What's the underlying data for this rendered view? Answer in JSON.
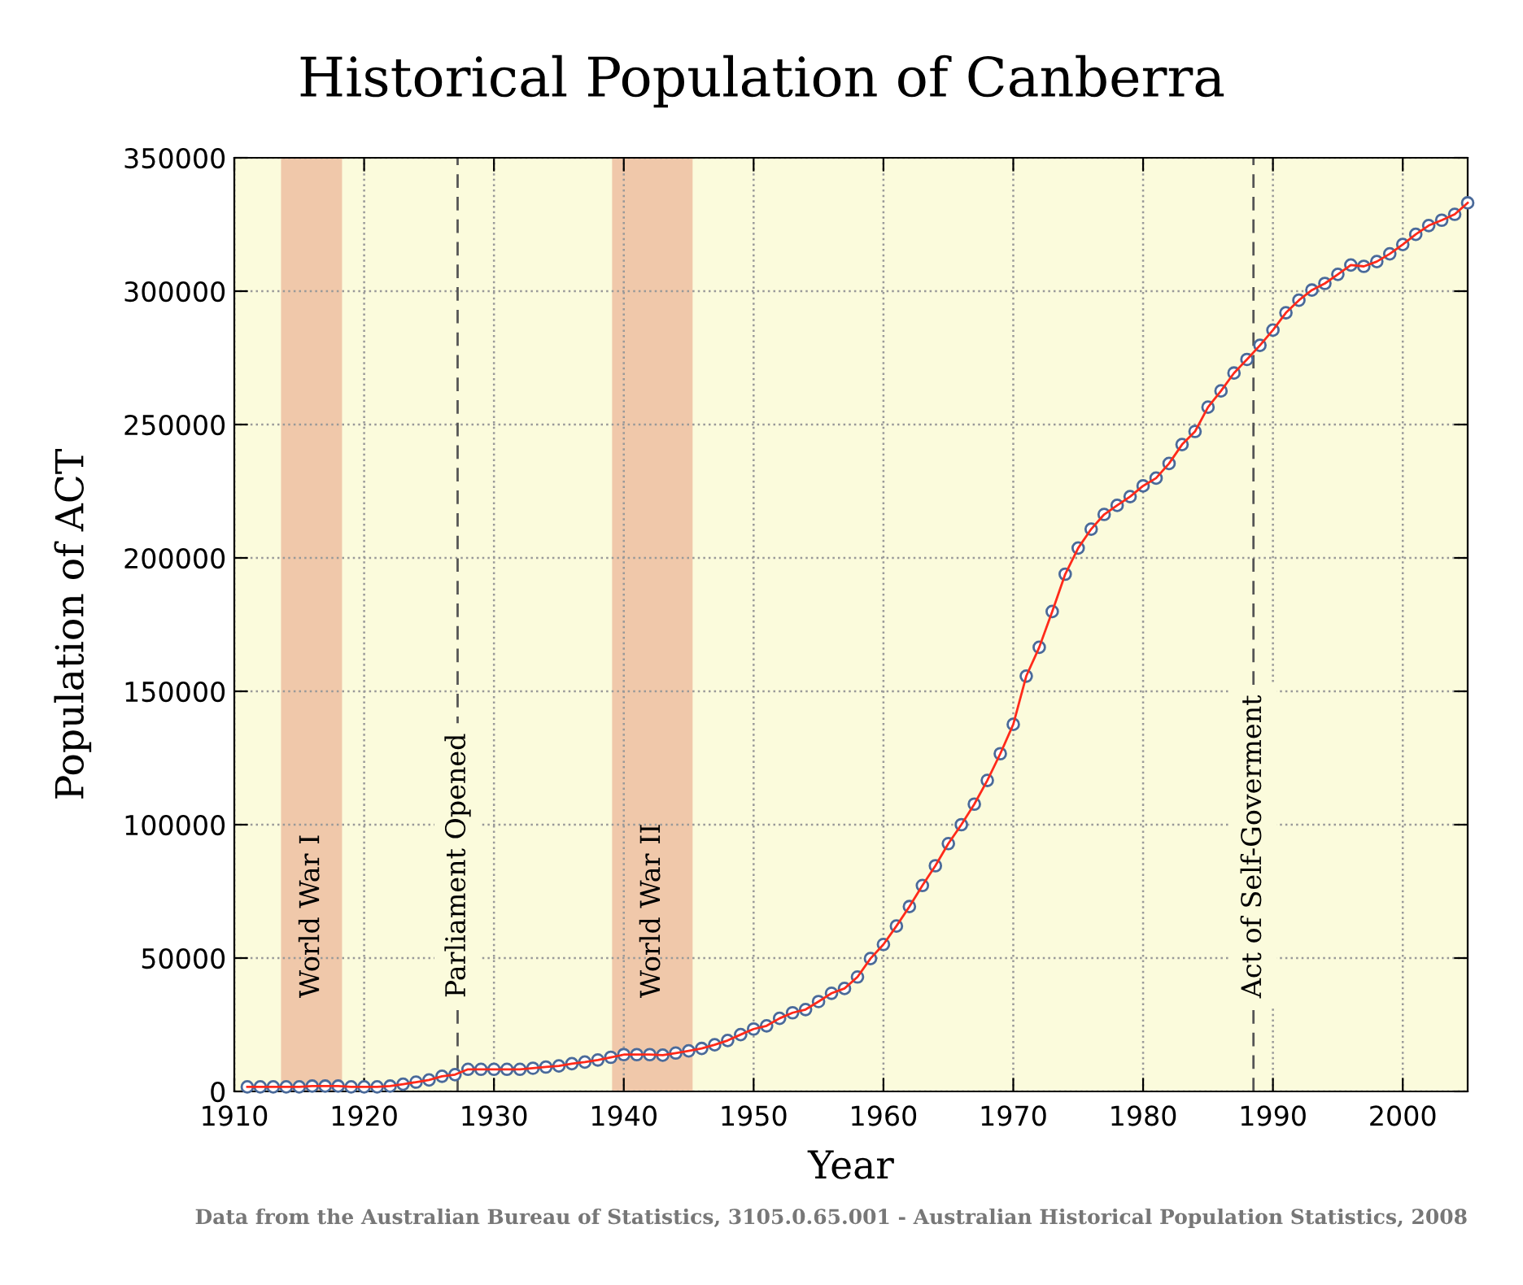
{
  "chart_data": {
    "type": "line",
    "title": "Historical Population of Canberra",
    "xlabel": "Year",
    "ylabel": "Population of ACT",
    "x": [
      1911,
      1912,
      1913,
      1914,
      1915,
      1916,
      1917,
      1918,
      1919,
      1920,
      1921,
      1922,
      1923,
      1924,
      1925,
      1926,
      1927,
      1928,
      1929,
      1930,
      1931,
      1932,
      1933,
      1934,
      1935,
      1936,
      1937,
      1938,
      1939,
      1940,
      1941,
      1942,
      1943,
      1944,
      1945,
      1946,
      1947,
      1948,
      1949,
      1950,
      1951,
      1952,
      1953,
      1954,
      1955,
      1956,
      1957,
      1958,
      1959,
      1960,
      1961,
      1962,
      1963,
      1964,
      1965,
      1966,
      1967,
      1968,
      1969,
      1970,
      1971,
      1972,
      1973,
      1974,
      1975,
      1976,
      1977,
      1978,
      1979,
      1980,
      1981,
      1982,
      1983,
      1984,
      1985,
      1986,
      1987,
      1988,
      1989,
      1990,
      1991,
      1992,
      1993,
      1994,
      1995,
      1996,
      1997,
      1998,
      1999,
      2000,
      2001,
      2002,
      2003,
      2004,
      2005
    ],
    "series": [
      {
        "color": "#ff2a1a",
        "values": [
          1700,
          1700,
          1700,
          1700,
          1700,
          2000,
          2000,
          2000,
          1700,
          1700,
          1700,
          2000,
          2700,
          3500,
          4300,
          5700,
          6300,
          8300,
          8300,
          8300,
          8300,
          8300,
          8700,
          9150,
          9550,
          10400,
          11000,
          11800,
          12800,
          13800,
          13800,
          13800,
          13600,
          14400,
          15200,
          16100,
          17500,
          19100,
          21300,
          23400,
          24600,
          27400,
          29500,
          30700,
          33700,
          36800,
          38600,
          42900,
          49800,
          55100,
          62000,
          69300,
          77200,
          84600,
          92900,
          100000,
          107700,
          116600,
          126600,
          137600,
          155700,
          166500,
          179900,
          193900,
          203700,
          210800,
          216300,
          219700,
          223000,
          227000,
          229900,
          235400,
          242500,
          247400,
          256500,
          262600,
          269300,
          274400,
          279700,
          285400,
          291900,
          296600,
          300400,
          302900,
          306300,
          309800,
          309300,
          311100,
          314000,
          317500,
          321300,
          324600,
          326600,
          328800,
          333100
        ]
      }
    ],
    "marker": "circle",
    "line_style": "solid",
    "xlim": [
      1910,
      2005
    ],
    "xticks": [
      1910,
      1920,
      1930,
      1940,
      1950,
      1960,
      1970,
      1980,
      1990,
      2000
    ],
    "ylim": [
      0,
      350000
    ],
    "yticks": [
      0,
      50000,
      100000,
      150000,
      200000,
      250000,
      300000,
      350000
    ],
    "grid": true,
    "bands": [
      {
        "axis": "x",
        "from": 1913.6,
        "to": 1918.3,
        "label": "World War I",
        "color": "#f0c8aa"
      },
      {
        "axis": "x",
        "from": 1939.1,
        "to": 1945.3,
        "label": "World War II",
        "color": "#f0c8aa"
      }
    ],
    "ref_lines": [
      {
        "axis": "x",
        "value": 1927.2,
        "label": "Parliament Opened",
        "color": "#555555",
        "line_style": "dashed"
      },
      {
        "axis": "x",
        "value": 1988.5,
        "label": "Act of Self-Goverment",
        "color": "#555555",
        "line_style": "dashed"
      }
    ],
    "annotations": [
      "Data from the Australian Bureau of Statistics, 3105.0.65.001 - Australian Historical Population Statistics, 2008"
    ]
  }
}
